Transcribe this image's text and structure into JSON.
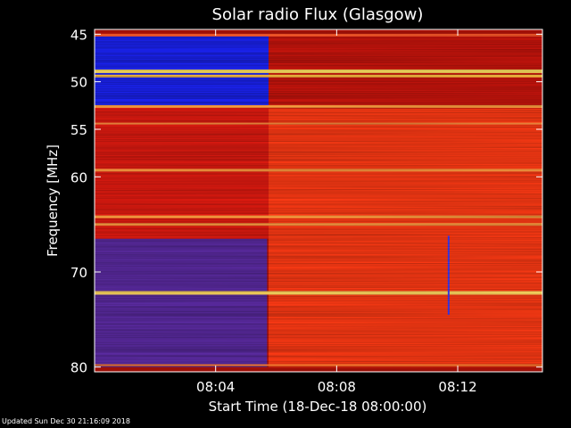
{
  "chart_data": {
    "type": "heatmap",
    "title": "Solar radio Flux (Glasgow)",
    "xlabel": "Start Time (18-Dec-18 08:00:00)",
    "ylabel": "Frequency [MHz]",
    "x_unit": "minutes after 08:00:00",
    "xlim": [
      0,
      14.8
    ],
    "ylim": [
      44.5,
      80.5
    ],
    "y_inverted": true,
    "x_ticks": [
      {
        "value": 4,
        "label": "08:04"
      },
      {
        "value": 8,
        "label": "08:08"
      },
      {
        "value": 12,
        "label": "08:12"
      }
    ],
    "y_ticks": [
      {
        "value": 45,
        "label": "45"
      },
      {
        "value": 50,
        "label": "50"
      },
      {
        "value": 55,
        "label": "55"
      },
      {
        "value": 60,
        "label": "60"
      },
      {
        "value": 70,
        "label": "70"
      },
      {
        "value": 80,
        "label": "80"
      }
    ],
    "regions": [
      {
        "name": "low-flux",
        "x_range": [
          0,
          5.75
        ],
        "y_range": [
          45,
          52.5
        ],
        "color": "#1a22f0"
      },
      {
        "name": "low-flux",
        "x_range": [
          0,
          5.7
        ],
        "y_range": [
          66.5,
          80
        ],
        "color": "#5a2aa0"
      },
      {
        "name": "background",
        "x_range": [
          0,
          5.75
        ],
        "y_range": [
          52.5,
          66.5
        ],
        "color": "#e01a10"
      },
      {
        "name": "background",
        "x_range": [
          5.75,
          14.8
        ],
        "y_range": [
          45,
          52.8
        ],
        "color": "#c8140c"
      },
      {
        "name": "enhanced",
        "x_range": [
          5.75,
          14.8
        ],
        "y_range": [
          52.8,
          80
        ],
        "color": "#ff3a14"
      }
    ],
    "bands": [
      {
        "freq": 45.1,
        "intensity": "high",
        "color": "#ff5a2a"
      },
      {
        "freq": 48.9,
        "intensity": "max",
        "color": "#ffe060"
      },
      {
        "freq": 49.4,
        "intensity": "high",
        "color": "#ffc040"
      },
      {
        "freq": 52.6,
        "intensity": "high",
        "color": "#ffa040"
      },
      {
        "freq": 54.4,
        "intensity": "medium",
        "color": "#ff9040"
      },
      {
        "freq": 59.3,
        "intensity": "high",
        "color": "#ff9a40"
      },
      {
        "freq": 64.2,
        "intensity": "high",
        "color": "#ffa040"
      },
      {
        "freq": 65.0,
        "intensity": "high",
        "color": "#ff9a40"
      },
      {
        "freq": 72.2,
        "intensity": "max",
        "color": "#ffd860"
      },
      {
        "freq": 79.8,
        "intensity": "medium",
        "color": "#ff8030"
      }
    ],
    "vertical_feature": {
      "x": 11.7,
      "y_range": [
        66.2,
        74.5
      ],
      "color": "#3a3aff"
    },
    "colors": {
      "frame": "#ffffff",
      "background": "#000000",
      "low": "#1a22f0",
      "mid": "#e01a10",
      "high": "#ffe060"
    }
  },
  "footer": "Updated Sun Dec 30 21:16:09 2018"
}
